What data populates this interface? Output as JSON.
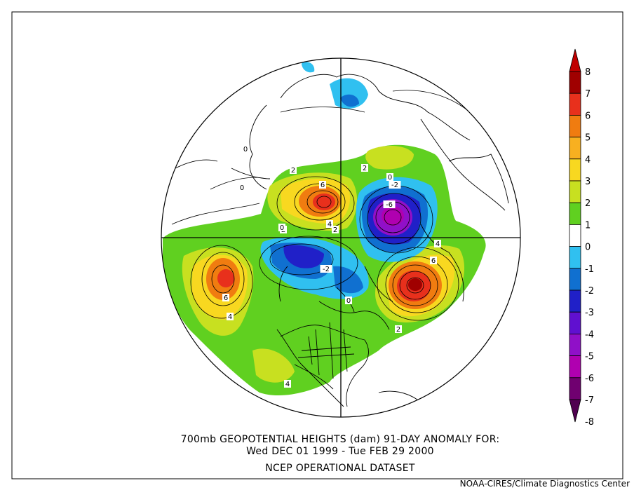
{
  "title": {
    "line1": "700mb GEOPOTENTIAL HEIGHTS (dam)   91-DAY ANOMALY FOR:",
    "line2": "Wed DEC 01 1999 - Tue FEB 29 2000",
    "line3": "NCEP OPERATIONAL DATASET"
  },
  "credit": "NOAA-CIRES/Climate Diagnostics Center",
  "colorbar": {
    "labels": [
      "8",
      "7",
      "6",
      "5",
      "4",
      "3",
      "2",
      "1",
      "0",
      "-1",
      "-2",
      "-3",
      "-4",
      "-5",
      "-6",
      "-7",
      "-8"
    ],
    "colors": [
      "#a00000",
      "#e8301c",
      "#f07c10",
      "#f8b020",
      "#f8d820",
      "#c8e020",
      "#60d020",
      "#ffffff",
      "#30c0f0",
      "#1070d0",
      "#2020c8",
      "#6010d0",
      "#9010c8",
      "#b000b0",
      "#700070"
    ]
  },
  "map": {
    "contour_labels": [
      {
        "text": "6",
        "kind": "pos"
      },
      {
        "text": "4",
        "kind": "pos"
      },
      {
        "text": "2",
        "kind": "pos"
      },
      {
        "text": "2",
        "kind": "pos"
      },
      {
        "text": "6",
        "kind": "pos"
      },
      {
        "text": "4",
        "kind": "pos"
      },
      {
        "text": "2",
        "kind": "pos"
      },
      {
        "text": "6",
        "kind": "pos"
      },
      {
        "text": "4",
        "kind": "pos"
      },
      {
        "text": "2",
        "kind": "pos"
      },
      {
        "text": "4",
        "kind": "pos"
      },
      {
        "text": "2",
        "kind": "pos"
      },
      {
        "text": "-6",
        "kind": "neg"
      },
      {
        "text": "-2",
        "kind": "neg"
      },
      {
        "text": "-2",
        "kind": "neg"
      },
      {
        "text": "0",
        "kind": "zero"
      },
      {
        "text": "0",
        "kind": "zero"
      },
      {
        "text": "0",
        "kind": "zero"
      },
      {
        "text": "0",
        "kind": "zero"
      },
      {
        "text": "0",
        "kind": "zero"
      }
    ]
  }
}
